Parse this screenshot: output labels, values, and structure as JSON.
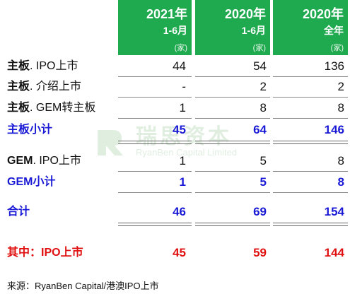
{
  "header": {
    "col1": {
      "year": "2021年",
      "period": "1-6月",
      "unit": "(家)"
    },
    "col2": {
      "year": "2020年",
      "period": "1-6月",
      "unit": "(家)"
    },
    "col3": {
      "year": "2020年",
      "period": "全年",
      "unit": "(家)"
    }
  },
  "rows": [
    {
      "prefix": "主板",
      "suffix": ". IPO上市",
      "v1": "44",
      "v2": "54",
      "v3": "136"
    },
    {
      "prefix": "主板",
      "suffix": ". 介绍上市",
      "v1": "-",
      "v2": "2",
      "v3": "2"
    },
    {
      "prefix": "主板",
      "suffix": ". GEM转主板",
      "v1": "1",
      "v2": "8",
      "v3": "8"
    },
    {
      "label": "主板小计",
      "v1": "45",
      "v2": "64",
      "v3": "146"
    },
    {
      "prefix": "GEM",
      "suffix": ". IPO上市",
      "v1": "1",
      "v2": "5",
      "v3": "8"
    },
    {
      "label": "GEM小计",
      "v1": "1",
      "v2": "5",
      "v3": "8"
    },
    {
      "label": "合计",
      "v1": "46",
      "v2": "69",
      "v3": "154"
    },
    {
      "label": "其中：IPO上市",
      "v1": "45",
      "v2": "59",
      "v3": "144"
    }
  ],
  "watermark": {
    "cn": "瑞思资本",
    "en": "RyanBen Capital Limited"
  },
  "source": "来源：RyanBen Capital/港澳IPO上市",
  "colors": {
    "header_green": "#1faa4f",
    "subtotal_blue": "#1a1ad6",
    "highlight_red": "#e01010"
  }
}
